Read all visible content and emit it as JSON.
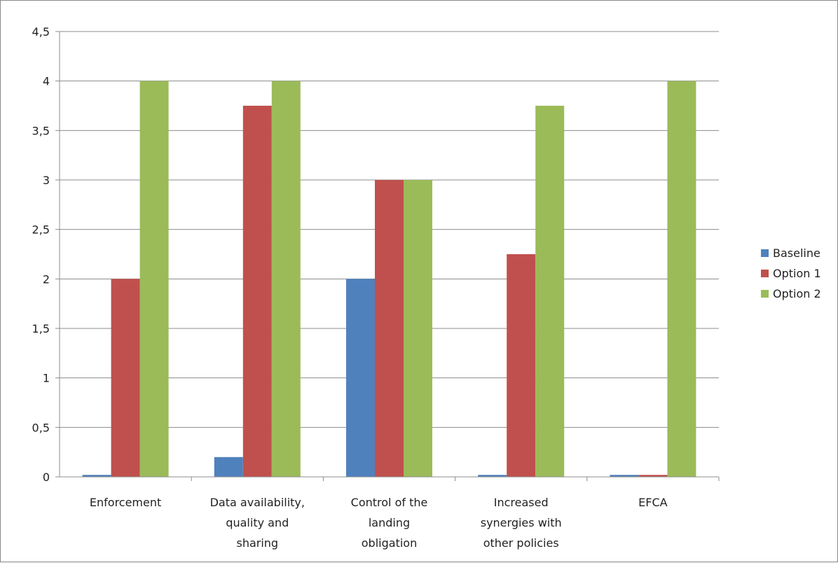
{
  "chart_data": {
    "type": "bar",
    "categories": [
      [
        "Enforcement"
      ],
      [
        "Data availability,",
        "quality and",
        "sharing"
      ],
      [
        "Control of the",
        "landing",
        "obligation"
      ],
      [
        "Increased",
        "synergies with",
        "other policies"
      ],
      [
        "EFCA"
      ]
    ],
    "series": [
      {
        "name": "Baseline",
        "color": "#4F81BD",
        "values": [
          0.02,
          0.2,
          2.0,
          0.02,
          0.02
        ]
      },
      {
        "name": "Option 1",
        "color": "#C0504D",
        "values": [
          2.0,
          3.75,
          3.0,
          2.25,
          0.02
        ]
      },
      {
        "name": "Option 2",
        "color": "#9BBB59",
        "values": [
          4.0,
          4.0,
          3.0,
          3.75,
          4.0
        ]
      }
    ],
    "ylim": [
      0,
      4.5
    ],
    "yticks": [
      "0",
      "0,5",
      "1",
      "1,5",
      "2",
      "2,5",
      "3",
      "3,5",
      "4",
      "4,5"
    ],
    "grid": true,
    "legend_position": "right",
    "title": "",
    "xlabel": "",
    "ylabel": ""
  }
}
